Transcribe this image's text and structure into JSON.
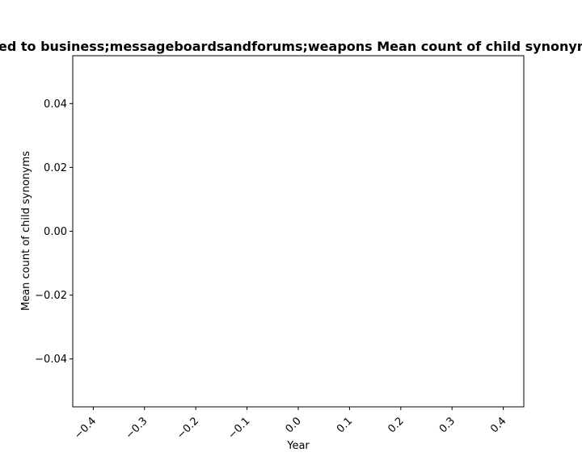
{
  "chart_data": {
    "type": "line",
    "title": "ed to business;messageboardsandforums;weapons Mean count of child synonyms",
    "xlabel": "Year",
    "ylabel": "Mean count of child synonyms",
    "xlim": [
      -0.44,
      0.44
    ],
    "ylim": [
      -0.055,
      0.055
    ],
    "x_ticks": [
      -0.4,
      -0.3,
      -0.2,
      -0.1,
      0.0,
      0.1,
      0.2,
      0.3,
      0.4
    ],
    "x_tick_labels": [
      "−0.4",
      "−0.3",
      "−0.2",
      "−0.1",
      "0.0",
      "0.1",
      "0.2",
      "0.3",
      "0.4"
    ],
    "y_ticks": [
      0.04,
      0.02,
      0.0,
      -0.02,
      -0.04
    ],
    "y_tick_labels": [
      "0.04",
      "0.02",
      "0.00",
      "−0.02",
      "−0.04"
    ],
    "series": [],
    "grid": false,
    "colors": {
      "axes": "#000000",
      "background": "#ffffff"
    }
  }
}
